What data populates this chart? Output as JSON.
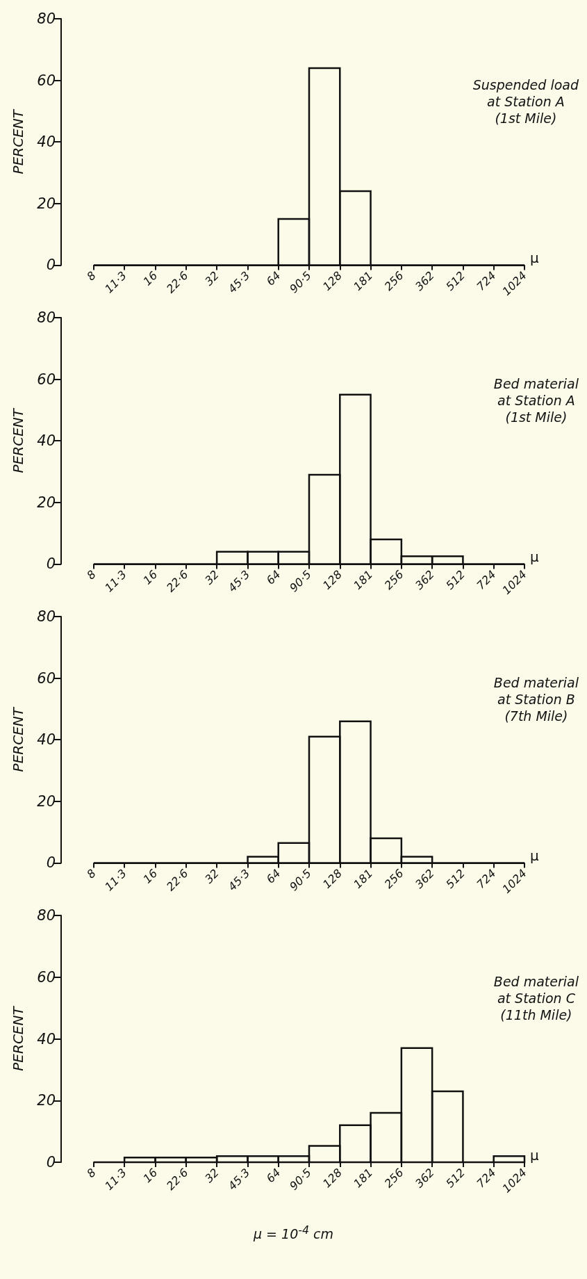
{
  "chart_data": [
    {
      "type": "histogram",
      "bins": [
        8,
        11.3,
        16,
        22.6,
        32,
        45.3,
        64,
        90.5,
        128,
        181,
        256,
        362,
        512,
        724,
        1024
      ],
      "values": [
        0,
        0,
        0,
        0,
        0,
        0,
        15,
        64,
        24,
        0,
        0,
        0,
        0,
        0
      ],
      "ylabel": "PERCENT",
      "xlabel": "μ",
      "annotations": [
        "Suspended load\nat Station A\n(1st Mile)"
      ],
      "log": "x",
      "xlim": [
        8,
        1024
      ],
      "xticks": [
        8,
        {
          "value": 11.3,
          "label": "11·3"
        },
        16,
        {
          "value": 22.6,
          "label": "22·6"
        },
        32,
        {
          "value": 45.3,
          "label": "45·3"
        },
        64,
        {
          "value": 90.5,
          "label": "90·5"
        },
        128,
        181,
        256,
        362,
        512,
        724,
        1024
      ],
      "ylim": [
        0,
        80
      ],
      "yticks": [
        0,
        20,
        40,
        60,
        80
      ],
      "grid": false
    },
    {
      "type": "histogram",
      "bins": [
        8,
        11.3,
        16,
        22.6,
        32,
        45.3,
        64,
        90.5,
        128,
        181,
        256,
        362,
        512,
        724,
        1024
      ],
      "values": [
        0,
        0,
        0,
        0,
        4,
        4,
        4,
        29,
        55,
        8,
        2.5,
        2.5,
        0,
        0
      ],
      "ylabel": "PERCENT",
      "xlabel": "μ",
      "annotations": [
        "Bed material\nat Station A\n(1st Mile)"
      ],
      "log": "x",
      "xlim": [
        8,
        1024
      ],
      "xticks": [
        8,
        {
          "value": 11.3,
          "label": "11·3"
        },
        16,
        {
          "value": 22.6,
          "label": "22·6"
        },
        32,
        {
          "value": 45.3,
          "label": "45·3"
        },
        64,
        {
          "value": 90.5,
          "label": "90·5"
        },
        128,
        181,
        256,
        362,
        512,
        724,
        1024
      ],
      "ylim": [
        0,
        80
      ],
      "yticks": [
        0,
        20,
        40,
        60,
        80
      ],
      "grid": false
    },
    {
      "type": "histogram",
      "bins": [
        8,
        11.3,
        16,
        22.6,
        32,
        45.3,
        64,
        90.5,
        128,
        181,
        256,
        362,
        512,
        724,
        1024
      ],
      "values": [
        0,
        0,
        0,
        0,
        0,
        2,
        6.5,
        41,
        46,
        8,
        2,
        0,
        0,
        0
      ],
      "ylabel": "PERCENT",
      "xlabel": "μ",
      "annotations": [
        "Bed material\nat Station B\n(7th Mile)"
      ],
      "log": "x",
      "xlim": [
        8,
        1024
      ],
      "xticks": [
        8,
        {
          "value": 11.3,
          "label": "11·3"
        },
        16,
        {
          "value": 22.6,
          "label": "22·6"
        },
        32,
        {
          "value": 45.3,
          "label": "45·3"
        },
        64,
        {
          "value": 90.5,
          "label": "90·5"
        },
        128,
        181,
        256,
        362,
        512,
        724,
        1024
      ],
      "ylim": [
        0,
        80
      ],
      "yticks": [
        0,
        20,
        40,
        60,
        80
      ],
      "grid": false
    },
    {
      "type": "histogram",
      "bins": [
        8,
        11.3,
        16,
        22.6,
        32,
        45.3,
        64,
        90.5,
        128,
        181,
        256,
        362,
        512,
        724,
        1024
      ],
      "values": [
        0,
        1.5,
        1.5,
        1.5,
        2,
        2,
        2,
        5.3,
        12,
        16,
        37,
        23,
        0,
        2
      ],
      "ylabel": "PERCENT",
      "xlabel": "μ",
      "annotations": [
        "Bed material\nat Station C\n(11th Mile)",
        "μ = 10$^{-4}$ cm"
      ],
      "log": "x",
      "xlim": [
        8,
        1024
      ],
      "xticks": [
        8,
        {
          "value": 11.3,
          "label": "11·3"
        },
        16,
        {
          "value": 22.6,
          "label": "22·6"
        },
        32,
        {
          "value": 45.3,
          "label": "45·3"
        },
        64,
        {
          "value": 90.5,
          "label": "90·5"
        },
        128,
        181,
        256,
        362,
        512,
        724,
        1024
      ],
      "ylim": [
        0,
        80
      ],
      "yticks": [
        0,
        20,
        40,
        60,
        80
      ],
      "grid": false
    }
  ]
}
